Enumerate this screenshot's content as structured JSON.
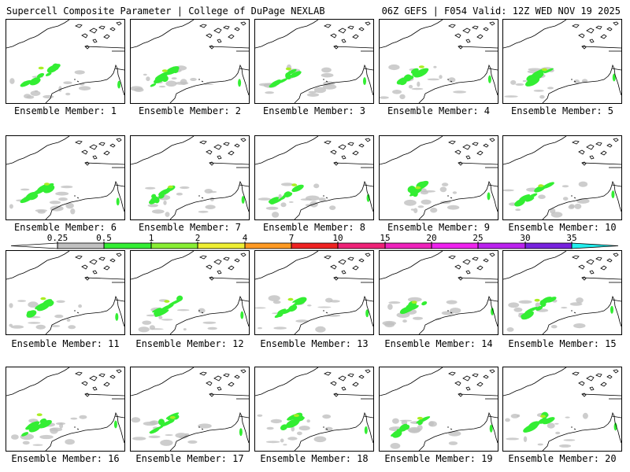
{
  "header": {
    "title_left": "Supercell Composite Parameter | College of DuPage NEXLAB",
    "title_right": "06Z GEFS | F054 Valid: 12Z WED NOV 19 2025"
  },
  "panels": [
    {
      "label": "Ensemble Member: 1"
    },
    {
      "label": "Ensemble Member: 2"
    },
    {
      "label": "Ensemble Member: 3"
    },
    {
      "label": "Ensemble Member: 4"
    },
    {
      "label": "Ensemble Member: 5"
    },
    {
      "label": "Ensemble Member: 6"
    },
    {
      "label": "Ensemble Member: 7"
    },
    {
      "label": "Ensemble Member: 8"
    },
    {
      "label": "Ensemble Member: 9"
    },
    {
      "label": "Ensemble Member: 10"
    },
    {
      "label": "Ensemble Member: 11"
    },
    {
      "label": "Ensemble Member: 12"
    },
    {
      "label": "Ensemble Member: 13"
    },
    {
      "label": "Ensemble Member: 14"
    },
    {
      "label": "Ensemble Member: 15"
    },
    {
      "label": "Ensemble Member: 16"
    },
    {
      "label": "Ensemble Member: 17"
    },
    {
      "label": "Ensemble Member: 18"
    },
    {
      "label": "Ensemble Member: 19"
    },
    {
      "label": "Ensemble Member: 20"
    }
  ],
  "colorbar": {
    "ticks": [
      "0.25",
      "0.5",
      "1",
      "2",
      "4",
      "7",
      "10",
      "15",
      "20",
      "25",
      "30",
      "35"
    ],
    "colors": [
      "#c0c0c0",
      "#33ee33",
      "#88ee33",
      "#eeee33",
      "#ff9922",
      "#ee2222",
      "#ee2277",
      "#ee22bb",
      "#ee22ee",
      "#bb22ee",
      "#7722dd",
      "#aa66dd",
      "#22eeee"
    ]
  },
  "palette": {
    "light_shade": "#c0c0c0",
    "green_shade": "#33ee33",
    "yellow_green_shade": "#aaee22"
  }
}
